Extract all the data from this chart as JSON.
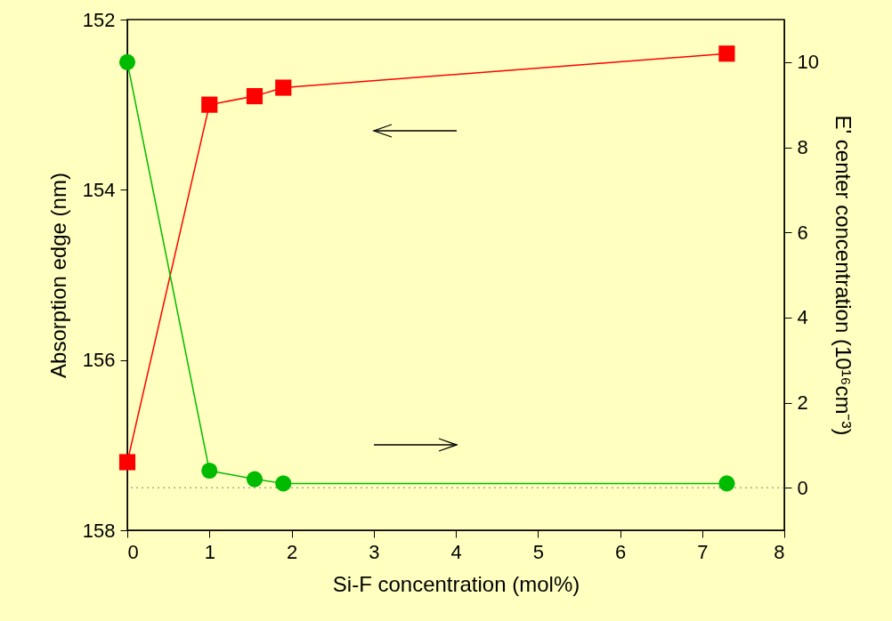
{
  "chart_data": {
    "type": "line",
    "xlabel": "Si-F concentration (mol%)",
    "ylabel": "Absorption edge (nm)",
    "y2label": "E' center concentration (10¹⁶cm⁻³)",
    "xlim": [
      0,
      8
    ],
    "xticks": [
      0,
      1,
      2,
      3,
      4,
      5,
      6,
      7,
      8
    ],
    "ylim": [
      158,
      152
    ],
    "yticks": [
      152,
      154,
      156,
      158
    ],
    "y2lim": [
      -1,
      11
    ],
    "y2ticks": [
      0,
      2,
      4,
      6,
      8,
      10
    ],
    "grid": false,
    "series": [
      {
        "color": "#ff0000",
        "marker": "square",
        "x": [
          0,
          1,
          1.55,
          1.9,
          7.3
        ],
        "values": [
          157.2,
          153.0,
          152.9,
          152.8,
          152.4
        ]
      },
      {
        "color": "#00bb00",
        "marker": "circle",
        "axis": "y2",
        "x": [
          0,
          1,
          1.55,
          1.9,
          7.3
        ],
        "values": [
          10,
          0.4,
          0.2,
          0.1,
          0.1
        ]
      }
    ],
    "ref_lines": [
      {
        "axis": "y2",
        "value": 0,
        "color": "#808080",
        "line_style": "dotted"
      }
    ]
  }
}
